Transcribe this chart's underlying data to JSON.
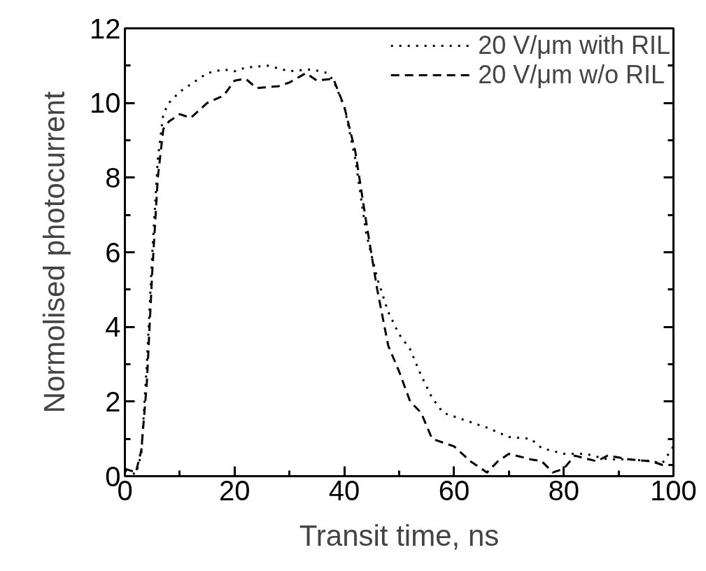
{
  "chart_data": {
    "type": "line",
    "xlabel": "Transit time, ns",
    "ylabel": "Normolised photocurrent",
    "xlim": [
      0,
      100
    ],
    "ylim": [
      0,
      12
    ],
    "xticks": [
      0,
      20,
      40,
      60,
      80,
      100
    ],
    "yticks": [
      0,
      2,
      4,
      6,
      8,
      10,
      12
    ],
    "grid": false,
    "legend": "top right",
    "marker": "none",
    "series": [
      {
        "name": "20 V/μm with RIL",
        "color": "#000000",
        "line_style": "dotted",
        "x": [
          0,
          2,
          3,
          4,
          5,
          6,
          7,
          8,
          10,
          12,
          15,
          18,
          20,
          22,
          26,
          30,
          34,
          37,
          38,
          40,
          42,
          44,
          46,
          48,
          50,
          52,
          54,
          56,
          58,
          62,
          66,
          70,
          74,
          76,
          80,
          84,
          88,
          92,
          96,
          98,
          100
        ],
        "values": [
          0.15,
          0.05,
          0.6,
          3,
          6,
          8.5,
          9.7,
          10.0,
          10.3,
          10.5,
          10.8,
          10.9,
          10.85,
          10.95,
          11.0,
          10.85,
          10.9,
          10.8,
          10.6,
          9.9,
          8.5,
          6.5,
          5.3,
          4.4,
          3.8,
          3.4,
          2.7,
          2.1,
          1.7,
          1.5,
          1.3,
          1.05,
          1.0,
          0.75,
          0.6,
          0.6,
          0.45,
          0.45,
          0.4,
          0.35,
          0.8
        ]
      },
      {
        "name": "20 V/μm w/o RIL",
        "color": "#000000",
        "line_style": "dashed",
        "x": [
          0,
          2,
          3,
          4,
          5,
          6,
          7,
          8,
          10,
          12,
          15,
          18,
          20,
          22,
          24,
          28,
          30,
          33,
          35,
          38,
          40,
          42,
          44,
          46,
          48,
          50,
          52,
          54,
          56,
          60,
          63,
          66,
          68,
          70,
          74,
          76,
          78,
          80,
          82,
          86,
          88,
          92,
          96,
          98,
          100
        ],
        "values": [
          0.2,
          0.1,
          0.7,
          2.5,
          5.5,
          8,
          9.3,
          9.5,
          9.7,
          9.6,
          10,
          10.2,
          10.6,
          10.65,
          10.4,
          10.45,
          10.55,
          10.8,
          10.6,
          10.65,
          9.9,
          8.7,
          6.8,
          5,
          3.5,
          2.8,
          2.0,
          1.7,
          1.0,
          0.8,
          0.4,
          0.1,
          0.4,
          0.6,
          0.45,
          0.4,
          0.1,
          0.2,
          0.55,
          0.4,
          0.55,
          0.45,
          0.4,
          0.3,
          0.3
        ]
      }
    ]
  }
}
